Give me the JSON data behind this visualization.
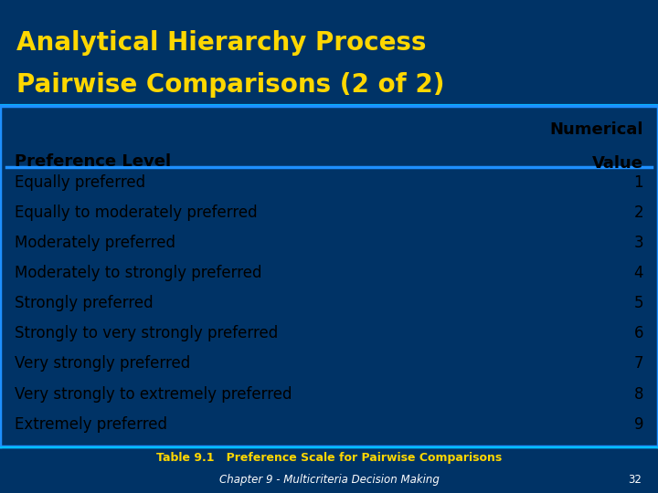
{
  "title_line1": "Analytical Hierarchy Process",
  "title_line2": "Pairwise Comparisons (2 of 2)",
  "title_color": "#FFD700",
  "title_bg_color": "#003366",
  "header_col1": "Preference Level",
  "header_col2_line1": "Numerical",
  "header_col2_line2": "Value",
  "rows": [
    [
      "Equally preferred",
      "1"
    ],
    [
      "Equally to moderately preferred",
      "2"
    ],
    [
      "Moderately preferred",
      "3"
    ],
    [
      "Moderately to strongly preferred",
      "4"
    ],
    [
      "Strongly preferred",
      "5"
    ],
    [
      "Strongly to very strongly preferred",
      "6"
    ],
    [
      "Very strongly preferred",
      "7"
    ],
    [
      "Very strongly to extremely preferred",
      "8"
    ],
    [
      "Extremely preferred",
      "9"
    ]
  ],
  "table_bg": "#FFFFFF",
  "table_border_color": "#1E90FF",
  "header_separator_color": "#1E90FF",
  "row_text_color": "#000000",
  "header_text_color": "#000000",
  "footer_line1": "Table 9.1   Preference Scale for Pairwise Comparisons",
  "footer_line2": "Chapter 9 - Multicriteria Decision Making",
  "footer_page": "32",
  "footer_bg": "#003366",
  "footer_text_color": "#FFD700",
  "footer_line2_color": "#FFFFFF",
  "footer_page_color": "#FFFFFF"
}
